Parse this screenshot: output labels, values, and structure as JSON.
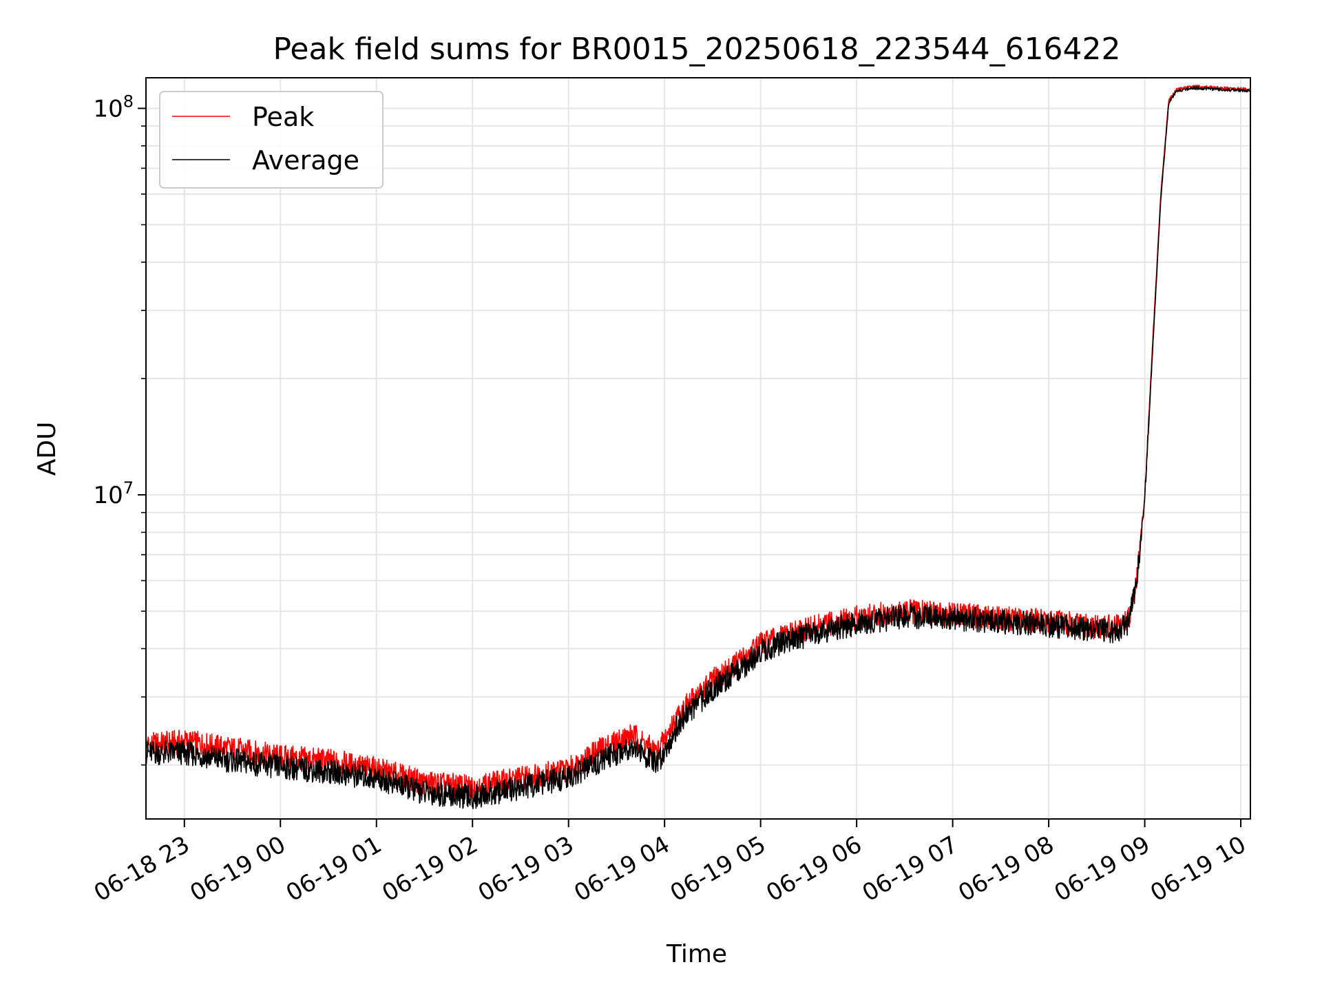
{
  "chart_data": {
    "type": "line",
    "title": "Peak field sums for BR0015_20250618_223544_616422",
    "xlabel": "Time",
    "ylabel": "ADU",
    "yscale": "log",
    "ylim": [
      1450000,
      120000000
    ],
    "xlim": [
      "2025-06-18 22:36",
      "2025-06-19 10:06"
    ],
    "grid": true,
    "legend_position": "upper-left",
    "x_ticks": [
      {
        "t": "2025-06-18 23:00",
        "label": "06-18 23"
      },
      {
        "t": "2025-06-19 00:00",
        "label": "06-19 00"
      },
      {
        "t": "2025-06-19 01:00",
        "label": "06-19 01"
      },
      {
        "t": "2025-06-19 02:00",
        "label": "06-19 02"
      },
      {
        "t": "2025-06-19 03:00",
        "label": "06-19 03"
      },
      {
        "t": "2025-06-19 04:00",
        "label": "06-19 04"
      },
      {
        "t": "2025-06-19 05:00",
        "label": "06-19 05"
      },
      {
        "t": "2025-06-19 06:00",
        "label": "06-19 06"
      },
      {
        "t": "2025-06-19 07:00",
        "label": "06-19 07"
      },
      {
        "t": "2025-06-19 08:00",
        "label": "06-19 08"
      },
      {
        "t": "2025-06-19 09:00",
        "label": "06-19 09"
      },
      {
        "t": "2025-06-19 10:00",
        "label": "06-19 10"
      }
    ],
    "y_ticks": [
      {
        "value": 10000000,
        "base": "10",
        "exp": "7"
      },
      {
        "value": 100000000,
        "base": "10",
        "exp": "8"
      }
    ],
    "series": [
      {
        "name": "Peak",
        "color": "#ff0000",
        "x": [
          "2025-06-18 22:36",
          "2025-06-18 23:00",
          "2025-06-18 23:30",
          "2025-06-19 00:00",
          "2025-06-19 00:30",
          "2025-06-19 01:00",
          "2025-06-19 01:30",
          "2025-06-19 02:00",
          "2025-06-19 02:30",
          "2025-06-19 03:00",
          "2025-06-19 03:20",
          "2025-06-19 03:40",
          "2025-06-19 03:55",
          "2025-06-19 04:10",
          "2025-06-19 04:30",
          "2025-06-19 04:50",
          "2025-06-19 05:00",
          "2025-06-19 05:30",
          "2025-06-19 06:00",
          "2025-06-19 06:30",
          "2025-06-19 07:00",
          "2025-06-19 07:30",
          "2025-06-19 08:00",
          "2025-06-19 08:30",
          "2025-06-19 08:45",
          "2025-06-19 08:50",
          "2025-06-19 08:55",
          "2025-06-19 09:00",
          "2025-06-19 09:05",
          "2025-06-19 09:10",
          "2025-06-19 09:15",
          "2025-06-19 09:20",
          "2025-06-19 09:30",
          "2025-06-19 09:45",
          "2025-06-19 10:06"
        ],
        "y": [
          2250000,
          2300000,
          2200000,
          2100000,
          2050000,
          1950000,
          1800000,
          1750000,
          1850000,
          1950000,
          2200000,
          2400000,
          2150000,
          2750000,
          3300000,
          3800000,
          4100000,
          4500000,
          4800000,
          5000000,
          4900000,
          4800000,
          4700000,
          4550000,
          4550000,
          4800000,
          6000000,
          10000000,
          25000000,
          60000000,
          105000000,
          112000000,
          114000000,
          113000000,
          112000000
        ]
      },
      {
        "name": "Average",
        "color": "#000000",
        "x": [
          "2025-06-18 22:36",
          "2025-06-18 23:00",
          "2025-06-18 23:30",
          "2025-06-19 00:00",
          "2025-06-19 00:30",
          "2025-06-19 01:00",
          "2025-06-19 01:30",
          "2025-06-19 02:00",
          "2025-06-19 02:30",
          "2025-06-19 03:00",
          "2025-06-19 03:20",
          "2025-06-19 03:40",
          "2025-06-19 03:55",
          "2025-06-19 04:10",
          "2025-06-19 04:30",
          "2025-06-19 04:50",
          "2025-06-19 05:00",
          "2025-06-19 05:30",
          "2025-06-19 06:00",
          "2025-06-19 06:30",
          "2025-06-19 07:00",
          "2025-06-19 07:30",
          "2025-06-19 08:00",
          "2025-06-19 08:30",
          "2025-06-19 08:45",
          "2025-06-19 08:50",
          "2025-06-19 08:55",
          "2025-06-19 09:00",
          "2025-06-19 09:05",
          "2025-06-19 09:10",
          "2025-06-19 09:15",
          "2025-06-19 09:20",
          "2025-06-19 09:30",
          "2025-06-19 09:45",
          "2025-06-19 10:06"
        ],
        "y": [
          2150000,
          2150000,
          2050000,
          1980000,
          1920000,
          1850000,
          1700000,
          1650000,
          1750000,
          1850000,
          2050000,
          2250000,
          2000000,
          2600000,
          3150000,
          3600000,
          3950000,
          4350000,
          4650000,
          4850000,
          4800000,
          4700000,
          4600000,
          4450000,
          4450000,
          4700000,
          5900000,
          9800000,
          24000000,
          58000000,
          103000000,
          111000000,
          113000000,
          112000000,
          111000000
        ]
      }
    ]
  }
}
